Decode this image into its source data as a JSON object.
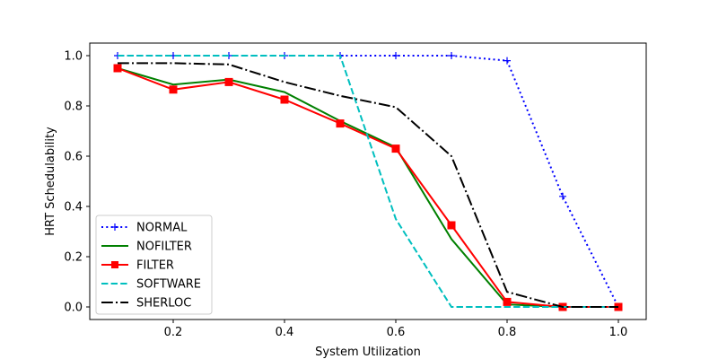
{
  "chart_data": {
    "type": "line",
    "title": "",
    "xlabel": "System Utilization",
    "ylabel": "HRT Schedulability",
    "xlim": [
      0.05,
      1.05
    ],
    "ylim": [
      -0.05,
      1.05
    ],
    "xticks": [
      0.2,
      0.4,
      0.6,
      0.8,
      1.0
    ],
    "xtick_labels": [
      "0.2",
      "0.4",
      "0.6",
      "0.8",
      "1.0"
    ],
    "yticks": [
      0.0,
      0.2,
      0.4,
      0.6,
      0.8,
      1.0
    ],
    "ytick_labels": [
      "0.0",
      "0.2",
      "0.4",
      "0.6",
      "0.8",
      "1.0"
    ],
    "grid": false,
    "legend_position": "lower-left",
    "x": [
      0.1,
      0.2,
      0.3,
      0.4,
      0.5,
      0.6,
      0.7,
      0.8,
      0.9,
      1.0
    ],
    "series": [
      {
        "name": "NORMAL",
        "color": "#0000ff",
        "style": "dotted",
        "marker": "plus",
        "values": [
          1.0,
          1.0,
          1.0,
          1.0,
          1.0,
          1.0,
          1.0,
          0.98,
          0.44,
          0.0
        ]
      },
      {
        "name": "NOFILTER",
        "color": "#008000",
        "style": "solid",
        "marker": "none",
        "values": [
          0.95,
          0.885,
          0.905,
          0.855,
          0.74,
          0.635,
          0.27,
          0.01,
          0.0,
          0.0
        ]
      },
      {
        "name": "FILTER",
        "color": "#ff0000",
        "style": "solid",
        "marker": "square",
        "values": [
          0.95,
          0.865,
          0.895,
          0.825,
          0.73,
          0.63,
          0.325,
          0.02,
          0.0,
          0.0
        ]
      },
      {
        "name": "SOFTWARE",
        "color": "#00bfbf",
        "style": "dashed",
        "marker": "none",
        "values": [
          1.0,
          1.0,
          1.0,
          1.0,
          1.0,
          0.35,
          0.0,
          0.0,
          0.0,
          0.0
        ]
      },
      {
        "name": "SHERLOC",
        "color": "#000000",
        "style": "dashdot",
        "marker": "none",
        "values": [
          0.97,
          0.97,
          0.965,
          0.895,
          0.84,
          0.795,
          0.6,
          0.06,
          0.0,
          0.0
        ]
      }
    ]
  }
}
